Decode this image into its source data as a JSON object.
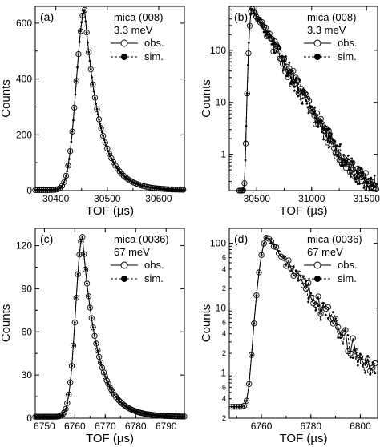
{
  "chart_data": [
    {
      "id": "a",
      "type": "line",
      "panel_label": "(a)",
      "annotation": [
        "mica (008)",
        "3.3 meV"
      ],
      "legend": [
        "obs.",
        "sim."
      ],
      "xlabel": "TOF (µs)",
      "ylabel": "Counts",
      "xlim": [
        30360,
        30650
      ],
      "ylim": [
        0,
        660
      ],
      "yscale": "linear",
      "xticks": [
        30400,
        30500,
        30600
      ],
      "xtick_labels": [
        "30400",
        "30500",
        "30600"
      ],
      "yticks": [
        0,
        200,
        400,
        600
      ],
      "ytick_labels": [
        "0",
        "200",
        "400",
        "600"
      ],
      "peak": {
        "center": 30456,
        "height": 645,
        "sigma_left": 16,
        "tau": 30,
        "background": 2
      },
      "series": [
        {
          "name": "obs.",
          "marker": "open-circle",
          "line": "solid",
          "x_start": 30360,
          "x_end": 30650,
          "step": 4
        },
        {
          "name": "sim.",
          "marker": "filled-dot",
          "line": "dashed",
          "x_start": 30360,
          "x_end": 30650,
          "step": 2
        }
      ]
    },
    {
      "id": "b",
      "type": "line",
      "panel_label": "(b)",
      "annotation": [
        "mica (008)",
        "3.3 meV"
      ],
      "legend": [
        "obs.",
        "sim."
      ],
      "xlabel": "TOF (µs)",
      "ylabel": "Counts",
      "xlim": [
        30250,
        31600
      ],
      "ylim": [
        0.2,
        700
      ],
      "yscale": "log",
      "xticks": [
        30500,
        31000,
        31500
      ],
      "xtick_labels": [
        "30500",
        "31000",
        "31500"
      ],
      "yticks": [
        1,
        10,
        100
      ],
      "ytick_labels": [
        "1",
        "10",
        "100"
      ],
      "peak": {
        "center": 30456,
        "height": 645,
        "sigma_left": 16,
        "tau": 120,
        "background": 0.2
      },
      "series": [
        {
          "name": "obs.",
          "marker": "open-circle",
          "line": "solid",
          "x_start": 30340,
          "x_end": 31590,
          "step": 12
        },
        {
          "name": "sim.",
          "marker": "filled-dot",
          "line": "dashed",
          "x_start": 30340,
          "x_end": 31590,
          "step": 8
        }
      ]
    },
    {
      "id": "c",
      "type": "line",
      "panel_label": "(c)",
      "annotation": [
        "mica (0036)",
        "67 meV"
      ],
      "legend": [
        "obs.",
        "sim."
      ],
      "xlabel": "TOF (µs)",
      "ylabel": "Counts",
      "xlim": [
        6747,
        6796
      ],
      "ylim": [
        0,
        132
      ],
      "yscale": "linear",
      "xticks": [
        6750,
        6760,
        6770,
        6780,
        6790
      ],
      "xtick_labels": [
        "6750",
        "6760",
        "6770",
        "6780",
        "6790"
      ],
      "yticks": [
        0,
        30,
        60,
        90,
        120
      ],
      "ytick_labels": [
        "0",
        "30",
        "60",
        "90",
        "120"
      ],
      "peak": {
        "center": 6762.5,
        "height": 125,
        "sigma_left": 2.2,
        "tau": 5.0,
        "background": 1
      },
      "series": [
        {
          "name": "obs.",
          "marker": "open-circle",
          "line": "solid",
          "x_start": 6747,
          "x_end": 6796,
          "step": 0.5
        },
        {
          "name": "sim.",
          "marker": "filled-dot",
          "line": "dashed",
          "x_start": 6747,
          "x_end": 6796,
          "step": 0.5
        }
      ]
    },
    {
      "id": "d",
      "type": "line",
      "panel_label": "(d)",
      "annotation": [
        "mica (0036)",
        "67 meV"
      ],
      "legend": [
        "obs.",
        "sim."
      ],
      "xlabel": "TOF (µs)",
      "ylabel": "Counts",
      "xlim": [
        6747,
        6807
      ],
      "ylim": [
        0.2,
        170
      ],
      "yscale": "log",
      "xticks": [
        6760,
        6780,
        6800
      ],
      "xtick_labels": [
        "6760",
        "6780",
        "6800"
      ],
      "yticks": [
        1,
        10,
        100
      ],
      "ytick_labels": [
        "1",
        "10",
        "100"
      ],
      "minor_ytick_labels": [
        {
          "value": 0.2,
          "label": "2"
        },
        {
          "value": 0.4,
          "label": "4"
        },
        {
          "value": 0.6,
          "label": "6"
        },
        {
          "value": 2,
          "label": "2"
        },
        {
          "value": 4,
          "label": "4"
        },
        {
          "value": 6,
          "label": "6"
        },
        {
          "value": 20,
          "label": "2"
        },
        {
          "value": 40,
          "label": "4"
        },
        {
          "value": 60,
          "label": "6"
        }
      ],
      "peak": {
        "center": 6762.5,
        "height": 125,
        "sigma_left": 2.2,
        "tau": 8.5,
        "background": 0.3
      },
      "series": [
        {
          "name": "obs.",
          "marker": "open-circle",
          "line": "solid",
          "x_start": 6748,
          "x_end": 6806,
          "step": 1
        },
        {
          "name": "sim.",
          "marker": "filled-dot",
          "line": "dashed",
          "x_start": 6748,
          "x_end": 6806,
          "step": 1
        }
      ]
    }
  ]
}
